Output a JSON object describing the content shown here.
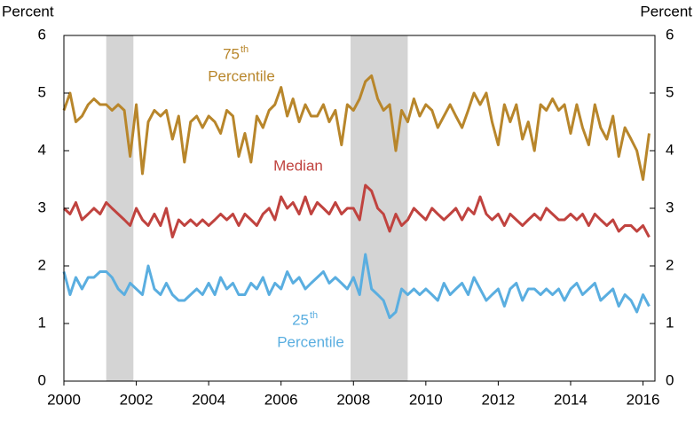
{
  "chart_data": {
    "type": "line",
    "y_label": "Percent",
    "y2_label": "Percent",
    "xlim": [
      2000,
      2016.33
    ],
    "xticks": [
      2000,
      2002,
      2004,
      2006,
      2008,
      2010,
      2012,
      2014,
      2016
    ],
    "ylim": [
      0,
      6
    ],
    "yticks": [
      0,
      1,
      2,
      3,
      4,
      5,
      6
    ],
    "y2lim": [
      0,
      6
    ],
    "y2ticks": [
      0,
      1,
      2,
      3,
      4,
      5,
      6
    ],
    "shaded_periods": [
      [
        2001.17,
        2001.92
      ],
      [
        2007.92,
        2009.5
      ]
    ],
    "shade_color": "#d4d4d4",
    "x": [
      2000,
      2000.17,
      2000.33,
      2000.5,
      2000.67,
      2000.83,
      2001,
      2001.17,
      2001.33,
      2001.5,
      2001.67,
      2001.83,
      2002,
      2002.17,
      2002.33,
      2002.5,
      2002.67,
      2002.83,
      2003,
      2003.17,
      2003.33,
      2003.5,
      2003.67,
      2003.83,
      2004,
      2004.17,
      2004.33,
      2004.5,
      2004.67,
      2004.83,
      2005,
      2005.17,
      2005.33,
      2005.5,
      2005.67,
      2005.83,
      2006,
      2006.17,
      2006.33,
      2006.5,
      2006.67,
      2006.83,
      2007,
      2007.17,
      2007.33,
      2007.5,
      2007.67,
      2007.83,
      2008,
      2008.17,
      2008.33,
      2008.5,
      2008.67,
      2008.83,
      2009,
      2009.17,
      2009.33,
      2009.5,
      2009.67,
      2009.83,
      2010,
      2010.17,
      2010.33,
      2010.5,
      2010.67,
      2010.83,
      2011,
      2011.17,
      2011.33,
      2011.5,
      2011.67,
      2011.83,
      2012,
      2012.17,
      2012.33,
      2012.5,
      2012.67,
      2012.83,
      2013,
      2013.17,
      2013.33,
      2013.5,
      2013.67,
      2013.83,
      2014,
      2014.17,
      2014.33,
      2014.5,
      2014.67,
      2014.83,
      2015,
      2015.17,
      2015.33,
      2015.5,
      2015.67,
      2015.83,
      2016,
      2016.17
    ],
    "series": [
      {
        "name": "75th Percentile",
        "color": "#b8862b",
        "values": [
          4.7,
          5.0,
          4.5,
          4.6,
          4.8,
          4.9,
          4.8,
          4.8,
          4.7,
          4.8,
          4.7,
          3.9,
          4.8,
          3.6,
          4.5,
          4.7,
          4.6,
          4.7,
          4.2,
          4.6,
          3.8,
          4.5,
          4.6,
          4.4,
          4.6,
          4.5,
          4.3,
          4.7,
          4.6,
          3.9,
          4.3,
          3.8,
          4.6,
          4.4,
          4.7,
          4.8,
          5.1,
          4.6,
          4.9,
          4.5,
          4.8,
          4.6,
          4.6,
          4.8,
          4.5,
          4.7,
          4.1,
          4.8,
          4.7,
          4.9,
          5.2,
          5.3,
          4.9,
          4.7,
          4.8,
          4.0,
          4.7,
          4.5,
          4.9,
          4.6,
          4.8,
          4.7,
          4.4,
          4.6,
          4.8,
          4.6,
          4.4,
          4.7,
          5.0,
          4.8,
          5.0,
          4.5,
          4.1,
          4.8,
          4.5,
          4.8,
          4.2,
          4.5,
          4.0,
          4.8,
          4.7,
          4.9,
          4.7,
          4.8,
          4.3,
          4.8,
          4.4,
          4.1,
          4.8,
          4.4,
          4.2,
          4.6,
          3.9,
          4.4,
          4.2,
          4.0,
          3.5,
          4.3
        ]
      },
      {
        "name": "Median",
        "color": "#c0433f",
        "values": [
          3.0,
          2.9,
          3.1,
          2.8,
          2.9,
          3.0,
          2.9,
          3.1,
          3.0,
          2.9,
          2.8,
          2.7,
          3.0,
          2.8,
          2.7,
          2.9,
          2.7,
          3.0,
          2.5,
          2.8,
          2.7,
          2.8,
          2.7,
          2.8,
          2.7,
          2.8,
          2.9,
          2.8,
          2.9,
          2.7,
          2.9,
          2.8,
          2.7,
          2.9,
          3.0,
          2.8,
          3.2,
          3.0,
          3.1,
          2.9,
          3.2,
          2.9,
          3.1,
          3.0,
          2.9,
          3.1,
          2.9,
          3.0,
          3.0,
          2.8,
          3.4,
          3.3,
          3.0,
          2.9,
          2.6,
          2.9,
          2.7,
          2.8,
          3.0,
          2.9,
          2.8,
          3.0,
          2.9,
          2.8,
          2.9,
          3.0,
          2.8,
          3.0,
          2.9,
          3.2,
          2.9,
          2.8,
          2.9,
          2.7,
          2.9,
          2.8,
          2.7,
          2.8,
          2.9,
          2.8,
          3.0,
          2.9,
          2.8,
          2.8,
          2.9,
          2.8,
          2.9,
          2.7,
          2.9,
          2.8,
          2.7,
          2.8,
          2.6,
          2.7,
          2.7,
          2.6,
          2.7,
          2.5
        ]
      },
      {
        "name": "25th Percentile",
        "color": "#5aaee0",
        "values": [
          1.9,
          1.5,
          1.8,
          1.6,
          1.8,
          1.8,
          1.9,
          1.9,
          1.8,
          1.6,
          1.5,
          1.7,
          1.6,
          1.5,
          2.0,
          1.6,
          1.5,
          1.7,
          1.5,
          1.4,
          1.4,
          1.5,
          1.6,
          1.5,
          1.7,
          1.5,
          1.8,
          1.6,
          1.7,
          1.5,
          1.5,
          1.7,
          1.6,
          1.8,
          1.5,
          1.7,
          1.6,
          1.9,
          1.7,
          1.8,
          1.6,
          1.7,
          1.8,
          1.9,
          1.7,
          1.8,
          1.7,
          1.6,
          1.8,
          1.5,
          2.2,
          1.6,
          1.5,
          1.4,
          1.1,
          1.2,
          1.6,
          1.5,
          1.6,
          1.5,
          1.6,
          1.5,
          1.4,
          1.7,
          1.5,
          1.6,
          1.7,
          1.5,
          1.8,
          1.6,
          1.4,
          1.5,
          1.6,
          1.3,
          1.6,
          1.7,
          1.4,
          1.6,
          1.6,
          1.5,
          1.6,
          1.5,
          1.6,
          1.4,
          1.6,
          1.7,
          1.5,
          1.6,
          1.7,
          1.4,
          1.5,
          1.6,
          1.3,
          1.5,
          1.4,
          1.2,
          1.5,
          1.3
        ]
      }
    ],
    "annotations": [
      {
        "number": "75",
        "ordinal": "th",
        "label": "Percentile",
        "color": "#b8862b"
      },
      {
        "label": "Median",
        "color": "#c0433f"
      },
      {
        "number": "25",
        "ordinal": "th",
        "label": "Percentile",
        "color": "#5aaee0"
      }
    ]
  }
}
